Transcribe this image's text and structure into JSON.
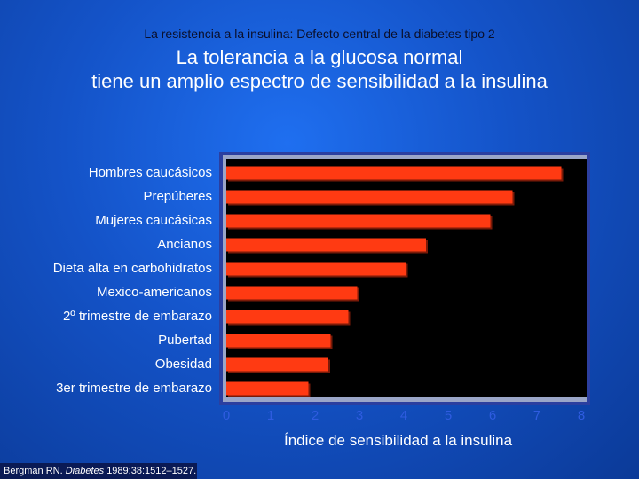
{
  "header": {
    "subtitle": "La resistencia a la insulina: Defecto central de la diabetes tipo 2",
    "title_line1": "La tolerancia a la glucosa normal",
    "title_line2": "tiene un amplio espectro de sensibilidad a la insulina"
  },
  "citation": {
    "author": "Bergman RN.",
    "journal": "Diabetes",
    "details": "1989;38:1512–1527."
  },
  "colors": {
    "bar": "#ff3a12",
    "bar_shadow": "#7a1a08",
    "plot_bg": "#000000",
    "plot_frame": "#2b3fa0",
    "tick_text": "#2f5ce0"
  },
  "chart_data": {
    "type": "bar",
    "orientation": "horizontal",
    "title": "",
    "xlabel": "Índice de sensibilidad a la insulina",
    "ylabel": "",
    "xlim": [
      0,
      8
    ],
    "xticks": [
      "0",
      "1",
      "2",
      "3",
      "4",
      "5",
      "6",
      "7",
      "8"
    ],
    "categories": [
      "Hombres caucásicos",
      "Prepúberes",
      "Mujeres caucásicas",
      "Ancianos",
      "Dieta alta en carbohidratos",
      "Mexico-americanos",
      "2º trimestre de embarazo",
      "Pubertad",
      "Obesidad",
      "3er trimestre de embarazo"
    ],
    "values": [
      7.55,
      6.45,
      5.95,
      4.5,
      4.05,
      2.95,
      2.75,
      2.35,
      2.3,
      1.85
    ],
    "grid": false
  }
}
